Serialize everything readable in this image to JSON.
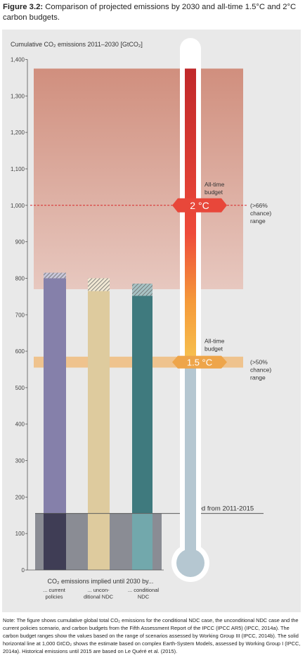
{
  "figure": {
    "label": "Figure 3.2:",
    "title": "Comparison of projected emissions by 2030 and all-time 1.5°C and 2°C carbon budgets."
  },
  "note": "Note: The figure shows cumulative global total CO₂ emissions for the conditional NDC case, the unconditional NDC case and the current policies scenario, and carbon budgets from the Fifth Assessment Report of the IPCC (IPCC AR5) (IPCC, 2014a). The carbon budget ranges show the values based on the range of scenarios assessed by Working Group III (IPCC, 2014b). The solid horizontal line at 1,000 GtCO₂ shows the estimate based on complex Earth-System Models, assessed by Working Group I (IPCC, 2014a). Historical emissions until 2015 are based on Le Quéré et al. (2015).",
  "colors": {
    "background": "#e9e9e9",
    "current_policies": "#8580aa",
    "unconditional": "#decb9e",
    "conditional": "#3f7a7e",
    "emitted_base": "#8a8c94",
    "band_2c": "#cf8a78",
    "band_15c": "#efc38e",
    "marker_2c": "#e8473a",
    "marker_15c": "#eea54a",
    "thermometer_stem": "#b5c7d1"
  },
  "chart_data": {
    "type": "bar",
    "ylabel": "Cumulative CO₂ emissions 2011–2030 [GtCO₂]",
    "ylim": [
      0,
      1400
    ],
    "yticks": [
      0,
      100,
      200,
      300,
      400,
      500,
      600,
      700,
      800,
      900,
      1000,
      1100,
      1200,
      1300,
      1400
    ],
    "ytick_labels": [
      "0",
      "100",
      "200",
      "300",
      "400",
      "500",
      "600",
      "700",
      "800",
      "900",
      "1,000",
      "1,100",
      "1,200",
      "1,300",
      "1,400"
    ],
    "xlabel": "CO₂ emissions implied until 2030 by...",
    "categories": [
      "... current policies",
      "... uncon-ditional NDC",
      "... conditional NDC"
    ],
    "series": [
      {
        "key": "current_policies",
        "range": [
          800,
          815
        ]
      },
      {
        "key": "unconditional",
        "range": [
          765,
          800
        ]
      },
      {
        "key": "conditional",
        "range": [
          752,
          785
        ]
      }
    ],
    "emitted_2011_2015": 155,
    "emitted_label": "Emitted from 2011-2015",
    "budget_2c": {
      "range": [
        770,
        1375
      ],
      "central": 1000,
      "title": "All-time budget",
      "label": "2 °C",
      "chance": "(>66% chance) range"
    },
    "budget_15c": {
      "range": [
        555,
        585
      ],
      "central": 570,
      "title": "All-time budget",
      "label": "1.5 °C",
      "chance": "(>50% chance) range"
    }
  }
}
